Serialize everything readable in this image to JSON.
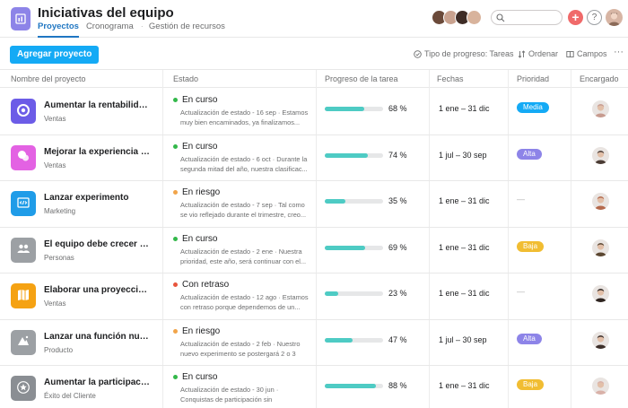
{
  "header": {
    "title": "Iniciativas del equipo",
    "tabs": [
      {
        "label": "Proyectos",
        "active": true
      },
      {
        "label": "Cronograma",
        "active": false
      },
      {
        "label": "Gestión de recursos",
        "active": false
      }
    ],
    "plus_label": "+",
    "help_label": "?"
  },
  "toolbar": {
    "add_label": "Agregar proyecto",
    "progress_type": "Tipo de progreso: Tareas",
    "sort": "Ordenar",
    "fields": "Campos",
    "more": "···"
  },
  "columns": {
    "name": "Nombre del proyecto",
    "status": "Estado",
    "progress": "Progreso de la tarea",
    "dates": "Fechas",
    "priority": "Prioridad",
    "assignee": "Encargado"
  },
  "colors": {
    "accent": "#14aaf5",
    "on_track": "#33b84a",
    "at_risk": "#f1a449",
    "off_track": "#e8553d",
    "progress": "#4ecbc4",
    "prio_media": "#14aaf5",
    "prio_alta": "#8d84e8",
    "prio_baja": "#f1bd32"
  },
  "rows": [
    {
      "name": "Aumentar la rentabilidad...",
      "team": "Ventas",
      "icon": "target-icon",
      "icon_bg": "#6c5ce7",
      "status": "En curso",
      "status_color": "#33b84a",
      "note": "Actualización de estado - 16 sep · Estamos muy bien encaminados, ya finalizamos...",
      "progress": 68,
      "pct": "68 %",
      "dates": "1 ene – 31 dic",
      "priority": "Media",
      "prio_color": "#14aaf5",
      "avatar": "#c79b8f"
    },
    {
      "name": "Mejorar la experiencia de...",
      "team": "Ventas",
      "icon": "chat-icon",
      "icon_bg": "#e362e3",
      "status": "En curso",
      "status_color": "#33b84a",
      "note": "Actualización de estado - 6 oct · Durante la segunda mitad del año, nuestra clasificac...",
      "progress": 74,
      "pct": "74 %",
      "dates": "1 jul – 30 sep",
      "priority": "Alta",
      "prio_color": "#8d84e8",
      "avatar": "#4a3b34"
    },
    {
      "name": "Lanzar experimento",
      "team": "Marketing",
      "icon": "code-icon",
      "icon_bg": "#1f9ce8",
      "status": "En riesgo",
      "status_color": "#f1a449",
      "note": "Actualización de estado - 7 sep · Tal como se vio reflejado durante el trimestre, creo...",
      "progress": 35,
      "pct": "35 %",
      "dates": "1 ene – 31 dic",
      "priority": "",
      "prio_color": "",
      "avatar": "#b56a4d"
    },
    {
      "name": "El equipo debe crecer un...",
      "team": "Personas",
      "icon": "people-icon",
      "icon_bg": "#9ca0a4",
      "status": "En curso",
      "status_color": "#33b84a",
      "note": "Actualización de estado - 2 ene · Nuestra prioridad, este año, será continuar con el...",
      "progress": 69,
      "pct": "69 %",
      "dates": "1 ene – 31 dic",
      "priority": "Baja",
      "prio_color": "#f1bd32",
      "avatar": "#5b4630"
    },
    {
      "name": "Elaborar una proyección...",
      "team": "Ventas",
      "icon": "map-icon",
      "icon_bg": "#f5a213",
      "status": "Con retraso",
      "status_color": "#e8553d",
      "note": "Actualización de estado - 12 ago · Estamos con retraso porque dependemos de un...",
      "progress": 23,
      "pct": "23 %",
      "dates": "1 ene – 31 dic",
      "priority": "",
      "prio_color": "",
      "avatar": "#2e2420"
    },
    {
      "name": "Lanzar una función nueva",
      "team": "Producto",
      "icon": "mountain-icon",
      "icon_bg": "#9ca0a4",
      "status": "En riesgo",
      "status_color": "#f1a449",
      "note": "Actualización de estado - 2 feb · Nuestro nuevo experimento se postergará 2 o 3 semanas...",
      "progress": 47,
      "pct": "47 %",
      "dates": "1 jul – 30 sep",
      "priority": "Alta",
      "prio_color": "#8d84e8",
      "avatar": "#3d2f2a"
    },
    {
      "name": "Aumentar la participación...",
      "team": "Éxito del Cliente",
      "icon": "star-icon",
      "icon_bg": "#8a8e93",
      "status": "En curso",
      "status_color": "#33b84a",
      "note": "Actualización de estado - 30 jun · Conquistas de participación sin precedentes...",
      "progress": 88,
      "pct": "88 %",
      "dates": "1 ene – 31 dic",
      "priority": "Baja",
      "prio_color": "#f1bd32",
      "avatar": "#d9b1a8"
    }
  ]
}
